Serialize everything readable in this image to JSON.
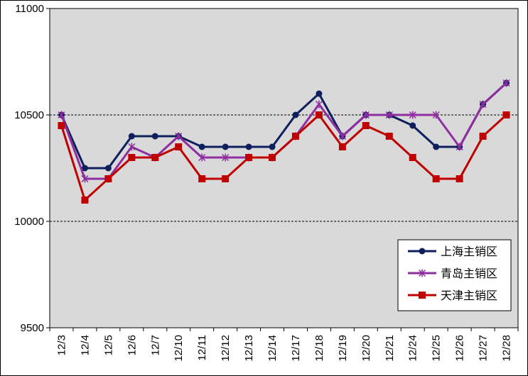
{
  "chart_data": {
    "type": "line",
    "categories": [
      "12/3",
      "12/4",
      "12/5",
      "12/6",
      "12/7",
      "12/10",
      "12/11",
      "12/12",
      "12/13",
      "12/14",
      "12/17",
      "12/18",
      "12/19",
      "12/20",
      "12/21",
      "12/24",
      "12/25",
      "12/26",
      "12/27",
      "12/28"
    ],
    "ylim": [
      9500,
      11000
    ],
    "yticks": [
      9500,
      10000,
      10500,
      11000
    ],
    "grid": "dashed at 10000 and 10500",
    "plot_background": "#d9d9d9",
    "legend_position": "bottom-right",
    "series": [
      {
        "name": "上海主销区",
        "color": "#0d1f5c",
        "marker": "circle",
        "values": [
          10500,
          10250,
          10250,
          10400,
          10400,
          10400,
          10350,
          10350,
          10350,
          10350,
          10500,
          10600,
          10400,
          10500,
          10500,
          10450,
          10350,
          10350,
          10550,
          10650
        ]
      },
      {
        "name": "青岛主销区",
        "color": "#8e2ea0",
        "marker": "asterisk",
        "values": [
          10500,
          10200,
          10200,
          10350,
          10300,
          10400,
          10300,
          10300,
          10300,
          10300,
          10400,
          10550,
          10400,
          10500,
          10500,
          10500,
          10500,
          10350,
          10550,
          10650
        ]
      },
      {
        "name": "天津主销区",
        "color": "#c00000",
        "marker": "square",
        "values": [
          10450,
          10100,
          10200,
          10300,
          10300,
          10350,
          10200,
          10200,
          10300,
          10300,
          10400,
          10500,
          10350,
          10450,
          10400,
          10300,
          10200,
          10200,
          10400,
          10500
        ]
      }
    ]
  }
}
